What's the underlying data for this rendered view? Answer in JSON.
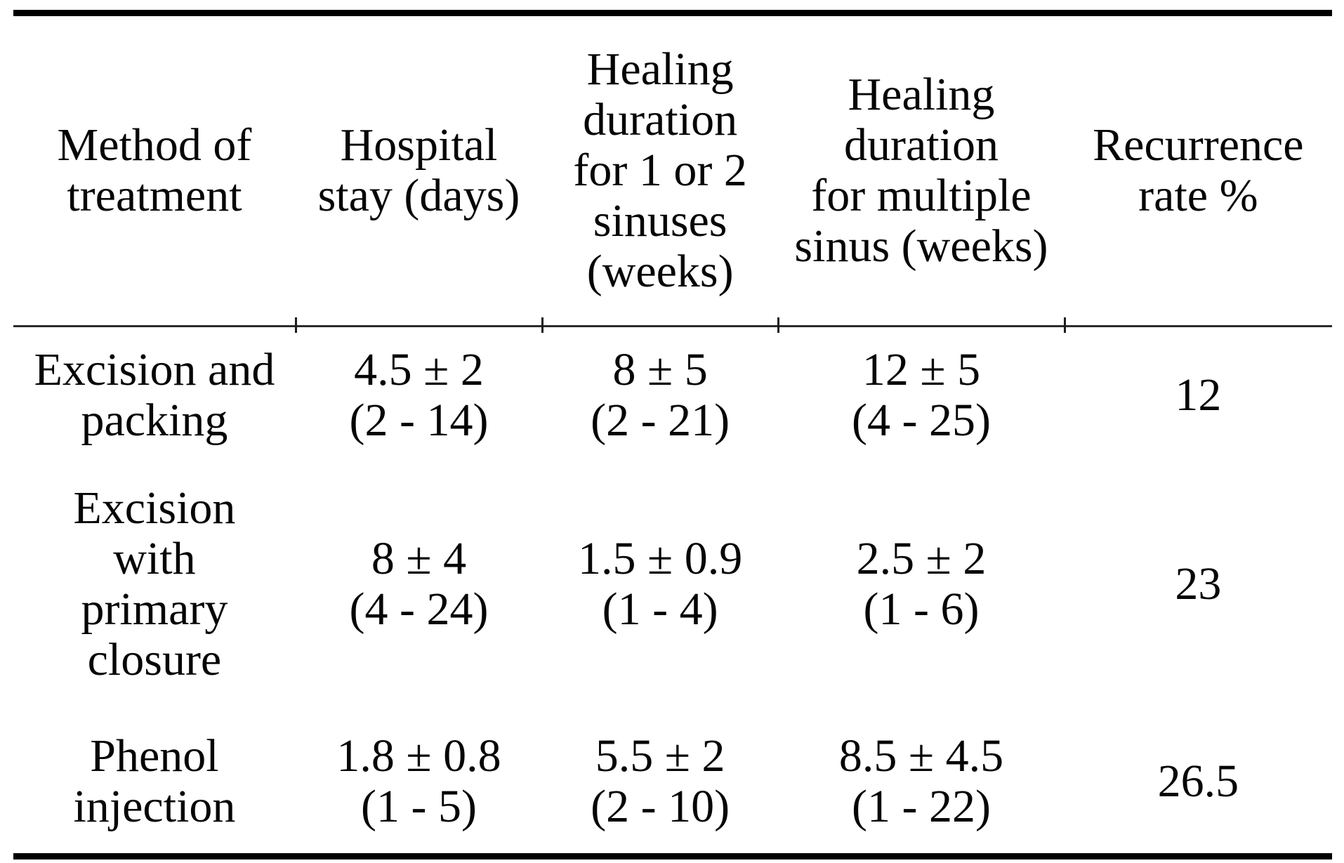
{
  "table": {
    "headers": {
      "method": "Method of\ntreatment",
      "hospital_stay": "Hospital\nstay (days)",
      "healing_1_2": "Healing\nduration\nfor 1 or 2\nsinuses\n(weeks)",
      "healing_multiple": "Healing\nduration\nfor multiple\nsinus (weeks)",
      "recurrence": "Recurrence\nrate %"
    },
    "rows": [
      {
        "method": "Excision and\npacking",
        "hospital_stay": {
          "mean": "4.5 ± 2",
          "range": "(2 - 14)"
        },
        "healing_1_2": {
          "mean": "8 ± 5",
          "range": "(2 - 21)"
        },
        "healing_multiple": {
          "mean": "12 ± 5",
          "range": "(4 - 25)"
        },
        "recurrence": "12"
      },
      {
        "method": "Excision\nwith\nprimary\nclosure",
        "hospital_stay": {
          "mean": "8 ± 4",
          "range": "(4 - 24)"
        },
        "healing_1_2": {
          "mean": "1.5 ± 0.9",
          "range": "(1 - 4)"
        },
        "healing_multiple": {
          "mean": "2.5 ± 2",
          "range": "(1 - 6)"
        },
        "recurrence": "23"
      },
      {
        "method": "Phenol\ninjection",
        "hospital_stay": {
          "mean": "1.8 ± 0.8",
          "range": "(1 - 5)"
        },
        "healing_1_2": {
          "mean": "5.5 ± 2",
          "range": "(2 - 10)"
        },
        "healing_multiple": {
          "mean": "8.5 ± 4.5",
          "range": "(1 - 22)"
        },
        "recurrence": "26.5"
      }
    ]
  },
  "chart_data": {
    "type": "table",
    "columns": [
      "Method of treatment",
      "Hospital stay (days)",
      "Healing duration for 1 or 2 sinuses (weeks)",
      "Healing duration for multiple sinus (weeks)",
      "Recurrence rate %"
    ],
    "rows": [
      [
        "Excision and packing",
        "4.5 ± 2 (2 - 14)",
        "8 ± 5 (2 - 21)",
        "12 ± 5 (4 - 25)",
        "12"
      ],
      [
        "Excision with primary closure",
        "8 ± 4 (4 - 24)",
        "1.5 ± 0.9 (1 - 4)",
        "2.5 ± 2 (1 - 6)",
        "23"
      ],
      [
        "Phenol injection",
        "1.8 ± 0.8 (1 - 5)",
        "5.5 ± 2 (2 - 10)",
        "8.5 ± 4.5 (1 - 22)",
        "26.5"
      ]
    ]
  },
  "colors": {
    "text": "#050505",
    "rule_heavy": "#000000",
    "rule_light": "#2b2b2b",
    "background": "#ffffff"
  }
}
